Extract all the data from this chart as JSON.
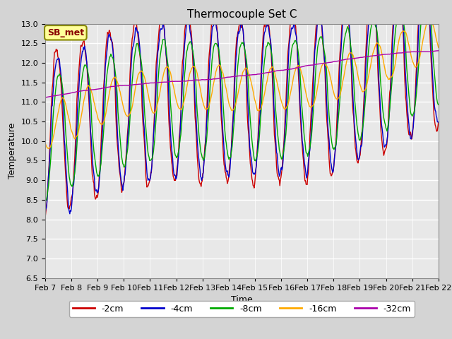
{
  "title": "Thermocouple Set C",
  "xlabel": "Time",
  "ylabel": "Temperature",
  "ylim": [
    6.5,
    13.0
  ],
  "yticks": [
    6.5,
    7.0,
    7.5,
    8.0,
    8.5,
    9.0,
    9.5,
    10.0,
    10.5,
    11.0,
    11.5,
    12.0,
    12.5,
    13.0
  ],
  "colors": {
    "-2cm": "#cc0000",
    "-4cm": "#0000cc",
    "-8cm": "#00aa00",
    "-16cm": "#ffaa00",
    "-32cm": "#aa00aa"
  },
  "legend_labels": [
    "-2cm",
    "-4cm",
    "-8cm",
    "-16cm",
    "-32cm"
  ],
  "sb_met_box_color": "#ffff99",
  "sb_met_text_color": "#880000",
  "fig_width": 6.4,
  "fig_height": 4.8,
  "dpi": 100,
  "title_fontsize": 11,
  "axis_label_fontsize": 9,
  "tick_fontsize": 8,
  "legend_fontsize": 9
}
